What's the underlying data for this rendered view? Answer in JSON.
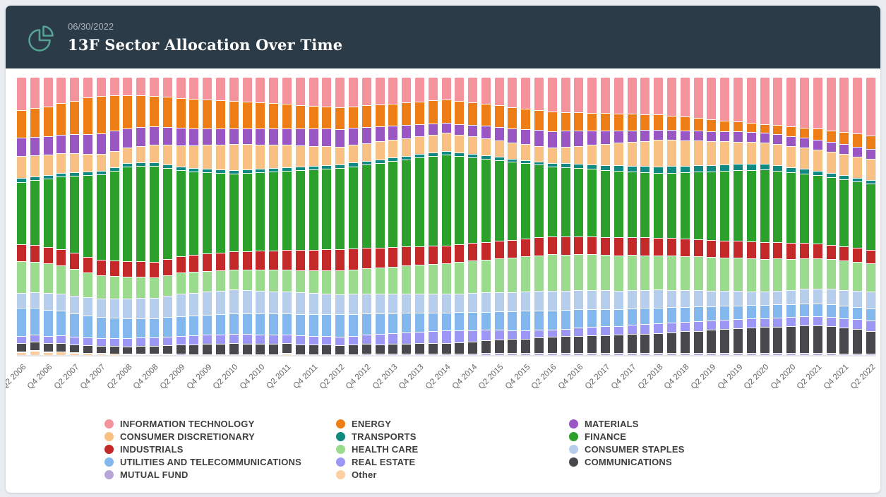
{
  "header": {
    "date": "06/30/2022",
    "title": "13F Sector Allocation Over Time",
    "icon": "pie-chart-icon"
  },
  "colors": {
    "header_bg": "#2b3b47",
    "header_icon": "#55a294",
    "date_text": "#a9b3ba",
    "page_bg": "#e9edf1",
    "card_bg": "#ffffff",
    "axis_label": "#666666",
    "legend_text": "#3e3e3e"
  },
  "chart_data": {
    "type": "bar",
    "stacked": true,
    "percent_stacked": true,
    "grid": false,
    "legend_position": "bottom",
    "x_tick_every": 2,
    "x_tick_rotation": -45,
    "categories": [
      "Q2 2006",
      "Q3 2006",
      "Q4 2006",
      "Q1 2007",
      "Q2 2007",
      "Q3 2007",
      "Q4 2007",
      "Q1 2008",
      "Q2 2008",
      "Q3 2008",
      "Q4 2008",
      "Q1 2009",
      "Q2 2009",
      "Q3 2009",
      "Q4 2009",
      "Q1 2010",
      "Q2 2010",
      "Q3 2010",
      "Q4 2010",
      "Q1 2011",
      "Q2 2011",
      "Q3 2011",
      "Q4 2011",
      "Q1 2012",
      "Q2 2012",
      "Q3 2012",
      "Q4 2012",
      "Q1 2013",
      "Q2 2013",
      "Q3 2013",
      "Q4 2013",
      "Q1 2014",
      "Q2 2014",
      "Q3 2014",
      "Q4 2014",
      "Q1 2015",
      "Q2 2015",
      "Q3 2015",
      "Q4 2015",
      "Q1 2016",
      "Q2 2016",
      "Q3 2016",
      "Q4 2016",
      "Q1 2017",
      "Q2 2017",
      "Q3 2017",
      "Q4 2017",
      "Q1 2018",
      "Q2 2018",
      "Q3 2018",
      "Q4 2018",
      "Q1 2019",
      "Q2 2019",
      "Q3 2019",
      "Q4 2019",
      "Q1 2020",
      "Q2 2020",
      "Q3 2020",
      "Q4 2020",
      "Q1 2021",
      "Q2 2021",
      "Q3 2021",
      "Q4 2021",
      "Q1 2022",
      "Q2 2022"
    ],
    "series": [
      {
        "name": "INFORMATION TECHNOLOGY",
        "color": "#f5939d",
        "values": [
          12,
          11.3,
          10.6,
          9.5,
          8.8,
          7.6,
          7.2,
          6.8,
          6.5,
          6.8,
          7.0,
          7.3,
          7.6,
          7.8,
          8.1,
          8.3,
          8.6,
          8.9,
          9.2,
          9.5,
          9.8,
          10.1,
          10.4,
          10.7,
          11,
          10.6,
          10.3,
          9.9,
          9.6,
          9.2,
          8.8,
          8.5,
          8.1,
          8.7,
          9.2,
          9.8,
          10.3,
          10.9,
          11.4,
          12,
          12.5,
          12.6,
          12.8,
          12.9,
          13,
          13.1,
          13.3,
          13.4,
          13.5,
          13.9,
          14.4,
          14.8,
          15.3,
          15.7,
          16.1,
          16.6,
          17,
          17.5,
          18,
          18.5,
          19,
          19.5,
          20,
          20.5,
          21
        ]
      },
      {
        "name": "ENERGY",
        "color": "#ef7d15",
        "values": [
          10,
          10.3,
          10.6,
          11.2,
          12,
          13.5,
          13.8,
          13,
          12,
          11.7,
          11.5,
          11.2,
          10.9,
          10.7,
          10.4,
          10.2,
          9.9,
          9.6,
          9.4,
          9.1,
          8.8,
          8.5,
          8.3,
          8,
          7.7,
          7.8,
          7.9,
          8,
          8.1,
          8.2,
          8.3,
          8.4,
          8.5,
          8.3,
          8.1,
          7.9,
          7.8,
          7.6,
          7.4,
          7.2,
          7,
          6.8,
          6.7,
          6.5,
          6.3,
          6.1,
          6,
          5.8,
          5.6,
          5.3,
          5,
          4.6,
          4.3,
          4,
          3.6,
          3.3,
          3,
          3.2,
          3.5,
          3.7,
          4,
          4.2,
          4.4,
          4.7,
          4.9
        ]
      },
      {
        "name": "MATERIALS",
        "color": "#9a57c4",
        "values": [
          6.5,
          6.6,
          6.6,
          6.7,
          6.8,
          7.3,
          7.8,
          7.4,
          7,
          6.8,
          6.7,
          6.5,
          6.3,
          6.1,
          6,
          5.8,
          5.6,
          5.7,
          5.8,
          5.9,
          6,
          6.1,
          6.2,
          6.3,
          6.4,
          6.1,
          5.7,
          5.4,
          5,
          4.7,
          4.3,
          4,
          3.6,
          3.9,
          4.2,
          4.5,
          4.8,
          5.1,
          5.4,
          5.7,
          6,
          5.7,
          5.4,
          5.1,
          4.8,
          4.5,
          4.2,
          3.9,
          3.6,
          3.6,
          3.6,
          3.6,
          3.6,
          3.6,
          3.6,
          3.6,
          3.6,
          3.6,
          3.6,
          3.6,
          3.6,
          3.6,
          3.6,
          3.6,
          3.6
        ]
      },
      {
        "name": "CONSUMER DISCRETIONARY",
        "color": "#f9c083",
        "values": [
          8,
          7.7,
          7.4,
          7.1,
          6.8,
          6.5,
          6.2,
          5.9,
          5.6,
          6.1,
          6.6,
          7.1,
          7.6,
          8,
          8.5,
          9,
          9.5,
          9.1,
          8.7,
          8.3,
          8,
          7.6,
          7.2,
          6.8,
          6.4,
          6.4,
          6.4,
          6.4,
          6.4,
          6.4,
          6.4,
          6.4,
          6.4,
          6.3,
          6.2,
          6.1,
          6,
          5.9,
          5.8,
          5.6,
          5.5,
          6,
          6.5,
          7,
          7.6,
          8.1,
          8.6,
          9.1,
          9.6,
          9.4,
          9.1,
          8.9,
          8.6,
          8.4,
          8.1,
          7.9,
          7.6,
          7.6,
          7.6,
          7.7,
          7.7,
          7.7,
          7.7,
          7.7,
          7.7
        ]
      },
      {
        "name": "TRANSPORTS",
        "color": "#108980",
        "values": [
          1.3,
          1.3,
          1.3,
          1.3,
          1.3,
          1.3,
          1.3,
          1.3,
          1.3,
          1.3,
          1.3,
          1.3,
          1.3,
          1.3,
          1.3,
          1.3,
          1.3,
          1.3,
          1.3,
          1.3,
          1.3,
          1.3,
          1.3,
          1.3,
          1.3,
          1.3,
          1.3,
          1.3,
          1.3,
          1.3,
          1.3,
          1.3,
          1.3,
          1.3,
          1.3,
          1.2,
          1.2,
          1.2,
          1.2,
          1.2,
          1.2,
          1.4,
          1.5,
          1.7,
          1.8,
          2,
          2.1,
          2.3,
          2.4,
          2.4,
          2.4,
          2.3,
          2.3,
          2.3,
          2.2,
          2.2,
          2.2,
          2.1,
          2,
          1.9,
          1.7,
          1.6,
          1.5,
          1.3,
          1.2
        ]
      },
      {
        "name": "FINANCE",
        "color": "#2ba02b",
        "values": [
          22.5,
          23.5,
          24.5,
          26,
          28,
          30,
          32,
          33,
          34,
          35,
          36,
          33.5,
          31,
          30,
          29.3,
          28.6,
          28,
          28.2,
          28.3,
          28.5,
          28.7,
          28.8,
          29,
          29.1,
          29.3,
          29.7,
          30.2,
          30.6,
          31.1,
          31.5,
          31.9,
          32.4,
          32.8,
          31.9,
          30.9,
          30,
          29,
          28.1,
          27.1,
          26.2,
          25.2,
          25,
          24.7,
          24.5,
          24.2,
          24,
          23.7,
          23.5,
          23.2,
          23.6,
          24,
          24.3,
          24.7,
          25.1,
          25.5,
          25.8,
          26.2,
          25.9,
          25.6,
          25.3,
          25.1,
          24.8,
          24.5,
          24.2,
          23.9
        ]
      },
      {
        "name": "INDUSTRIALS",
        "color": "#c52828",
        "values": [
          6,
          6,
          5.9,
          5.9,
          5.8,
          5.8,
          5.7,
          5.7,
          5.6,
          5.7,
          5.8,
          5.9,
          6.1,
          6.2,
          6.3,
          6.4,
          6.5,
          6.7,
          6.8,
          7,
          7.1,
          7.3,
          7.4,
          7.6,
          7.7,
          7.5,
          7.4,
          7.2,
          7.1,
          6.9,
          6.7,
          6.6,
          6.4,
          6.4,
          6.4,
          6.5,
          6.5,
          6.5,
          6.5,
          6.5,
          6.5,
          6.5,
          6.5,
          6.4,
          6.4,
          6.4,
          6.4,
          6.4,
          6.4,
          6.4,
          6.3,
          6.3,
          6.2,
          6.2,
          6.1,
          6.1,
          6,
          5.9,
          5.7,
          5.6,
          5.5,
          5.3,
          5.2,
          5,
          4.9
        ]
      },
      {
        "name": "HEALTH CARE",
        "color": "#9adb8d",
        "values": [
          11.5,
          11,
          10.6,
          10.1,
          9.7,
          9.2,
          8.7,
          8.3,
          7.8,
          7.7,
          7.7,
          7.6,
          7.6,
          7.5,
          7.4,
          7.4,
          7.3,
          7.5,
          7.6,
          7.8,
          7.9,
          8.1,
          8.2,
          8.4,
          8.5,
          8.8,
          9.1,
          9.4,
          9.8,
          10.1,
          10.4,
          10.7,
          11,
          11.3,
          11.6,
          11.8,
          12.1,
          12.4,
          12.7,
          12.9,
          13.2,
          13.1,
          13,
          12.9,
          12.8,
          12.7,
          12.6,
          12.5,
          12.4,
          12.3,
          12.3,
          12.2,
          12.1,
          12,
          12,
          11.9,
          11.8,
          11.6,
          11.4,
          11.2,
          11,
          10.8,
          10.6,
          10.4,
          10.2
        ]
      },
      {
        "name": "CONSUMER STAPLES",
        "color": "#b6cdeb",
        "values": [
          5.5,
          5.7,
          6,
          6.2,
          6.4,
          6.6,
          6.9,
          7.1,
          7.3,
          7.5,
          7.6,
          7.8,
          8,
          8.1,
          8.3,
          8.4,
          8.6,
          8.4,
          8.3,
          8.1,
          7.9,
          7.7,
          7.6,
          7.4,
          7.2,
          7.2,
          7.1,
          7.1,
          7,
          7,
          6.9,
          6.9,
          6.8,
          6.8,
          6.9,
          6.9,
          6.9,
          6.9,
          7,
          7,
          7,
          6.9,
          6.9,
          6.8,
          6.7,
          6.6,
          6.6,
          6.5,
          6.4,
          6.2,
          6,
          5.8,
          5.6,
          5.4,
          5.2,
          5,
          4.8,
          5,
          5.1,
          5.3,
          5.5,
          5.6,
          5.8,
          5.9,
          6.1
        ]
      },
      {
        "name": "UTILITIES AND TELECOMMUNICATIONS",
        "color": "#82b8ed",
        "values": [
          10,
          9.6,
          9.3,
          8.9,
          8.5,
          8.1,
          7.8,
          7.4,
          7,
          7,
          7.1,
          7.1,
          7.2,
          7.2,
          7.2,
          7.3,
          7.3,
          7.4,
          7.5,
          7.6,
          7.7,
          7.8,
          7.9,
          8,
          8.1,
          7.9,
          7.7,
          7.5,
          7.3,
          7.1,
          6.9,
          6.6,
          6.4,
          6.5,
          6.6,
          6.6,
          6.7,
          6.8,
          6.9,
          6.9,
          7,
          6.8,
          6.7,
          6.5,
          6.3,
          6.1,
          6,
          5.8,
          5.6,
          5.5,
          5.4,
          5.3,
          5.2,
          5.1,
          5,
          4.9,
          4.8,
          4.8,
          4.7,
          4.7,
          4.6,
          4.6,
          4.5,
          4.5,
          4.4
        ]
      },
      {
        "name": "REAL ESTATE",
        "color": "#9c96f5",
        "values": [
          2.6,
          2.7,
          2.7,
          2.8,
          2.8,
          2.9,
          2.9,
          3,
          3,
          3.1,
          3.1,
          3.2,
          3.2,
          3.3,
          3.3,
          3.4,
          3.4,
          3.4,
          3.3,
          3.3,
          3.2,
          3.2,
          3.1,
          3.1,
          3,
          3.2,
          3.4,
          3.6,
          3.8,
          4,
          4.1,
          4.3,
          4.5,
          4.3,
          4,
          3.8,
          3.6,
          3.3,
          3.1,
          2.9,
          2.6,
          2.7,
          2.9,
          3,
          3.1,
          3.2,
          3.4,
          3.5,
          3.6,
          3.6,
          3.5,
          3.5,
          3.4,
          3.4,
          3.3,
          3.3,
          3.2,
          3.3,
          3.3,
          3.4,
          3.4,
          3.5,
          3.5,
          3.6,
          3.6
        ]
      },
      {
        "name": "COMMUNICATIONS",
        "color": "#47474c",
        "values": [
          3,
          3,
          2.9,
          2.9,
          2.8,
          2.8,
          2.7,
          2.7,
          2.6,
          2.8,
          2.9,
          3.1,
          3.3,
          3.4,
          3.6,
          3.7,
          3.9,
          3.8,
          3.8,
          3.7,
          3.6,
          3.5,
          3.5,
          3.4,
          3.3,
          3.4,
          3.5,
          3.5,
          3.6,
          3.7,
          3.8,
          3.8,
          3.9,
          4.1,
          4.4,
          4.6,
          4.9,
          5.1,
          5.3,
          5.6,
          5.8,
          6,
          6.2,
          6.4,
          6.6,
          6.7,
          6.9,
          7.1,
          7.3,
          7.5,
          7.8,
          8,
          8.3,
          8.5,
          8.7,
          9,
          9.2,
          9.4,
          9.7,
          10,
          10.2,
          9.9,
          9.4,
          8.8,
          8.3
        ]
      },
      {
        "name": "MUTUAL FUND",
        "color": "#b7a5d6",
        "values": [
          0.3,
          0.3,
          0.3,
          0.2,
          0.2,
          0.2,
          0.2,
          0.2,
          0.2,
          0.2,
          0.2,
          0.2,
          0.2,
          0.1,
          0.1,
          0.1,
          0.1,
          0.1,
          0.1,
          0.1,
          0.1,
          0.1,
          0.1,
          0.1,
          0.1,
          0.1,
          0.2,
          0.2,
          0.2,
          0.2,
          0.2,
          0.3,
          0.3,
          0.3,
          0.3,
          0.4,
          0.4,
          0.4,
          0.4,
          0.5,
          0.5,
          0.5,
          0.5,
          0.5,
          0.4,
          0.4,
          0.4,
          0.4,
          0.4,
          0.5,
          0.5,
          0.5,
          0.5,
          0.6,
          0.6,
          0.6,
          0.6,
          0.6,
          0.5,
          0.5,
          0.4,
          0.4,
          0.3,
          0.3,
          0.2
        ]
      },
      {
        "name": "Other",
        "color": "#fbcfa1",
        "values": [
          0.8,
          1.2,
          0.8,
          0.9,
          0.6,
          0.4,
          0.3,
          0.2,
          0.1,
          0.1,
          0.1,
          0.1,
          0,
          0,
          0,
          0,
          0,
          0,
          0,
          0,
          0.3,
          0,
          0,
          0,
          0,
          0,
          0,
          0,
          0,
          0,
          0,
          0,
          0,
          0,
          0,
          0,
          0,
          0,
          0,
          0,
          0,
          0,
          0,
          0,
          0,
          0,
          0,
          0,
          0,
          0,
          0,
          0,
          0,
          0,
          0,
          0,
          0,
          0,
          0,
          0,
          0,
          0,
          0,
          0,
          0
        ]
      }
    ],
    "legend_columns": [
      [
        "INFORMATION TECHNOLOGY",
        "CONSUMER DISCRETIONARY",
        "INDUSTRIALS",
        "UTILITIES AND TELECOMMUNICATIONS",
        "MUTUAL FUND"
      ],
      [
        "ENERGY",
        "TRANSPORTS",
        "HEALTH CARE",
        "REAL ESTATE",
        "Other"
      ],
      [
        "MATERIALS",
        "FINANCE",
        "CONSUMER STAPLES",
        "COMMUNICATIONS"
      ]
    ]
  }
}
